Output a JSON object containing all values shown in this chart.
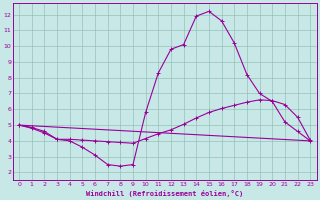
{
  "xlabel": "Windchill (Refroidissement éolien,°C)",
  "background_color": "#c8e8e8",
  "line_color": "#990099",
  "xlim": [
    -0.5,
    23.5
  ],
  "ylim": [
    1.5,
    12.7
  ],
  "xticks": [
    0,
    1,
    2,
    3,
    4,
    5,
    6,
    7,
    8,
    9,
    10,
    11,
    12,
    13,
    14,
    15,
    16,
    17,
    18,
    19,
    20,
    21,
    22,
    23
  ],
  "yticks": [
    2,
    3,
    4,
    5,
    6,
    7,
    8,
    9,
    10,
    11,
    12
  ],
  "curve1_x": [
    0,
    1,
    2,
    3,
    4,
    5,
    6,
    7,
    8,
    9,
    10,
    11,
    12,
    13,
    14,
    15,
    16,
    17,
    18,
    19,
    20,
    21,
    22,
    23
  ],
  "curve1_y": [
    5.0,
    4.8,
    4.5,
    4.1,
    4.0,
    3.6,
    3.1,
    2.5,
    2.4,
    2.5,
    5.8,
    8.3,
    9.8,
    10.1,
    11.9,
    12.2,
    11.6,
    10.2,
    8.2,
    7.0,
    6.5,
    5.2,
    4.6,
    4.0
  ],
  "curve2_x": [
    0,
    1,
    2,
    3,
    4,
    5,
    6,
    7,
    8,
    9,
    10,
    11,
    12,
    13,
    14,
    15,
    16,
    17,
    18,
    19,
    20,
    21,
    22,
    23
  ],
  "curve2_y": [
    5.0,
    4.85,
    4.6,
    4.1,
    4.1,
    4.05,
    4.0,
    3.95,
    3.9,
    3.85,
    4.15,
    4.45,
    4.7,
    5.05,
    5.45,
    5.8,
    6.05,
    6.25,
    6.45,
    6.6,
    6.55,
    6.3,
    5.5,
    4.05
  ],
  "curve3_x": [
    0,
    23
  ],
  "curve3_y": [
    5.0,
    4.0
  ]
}
